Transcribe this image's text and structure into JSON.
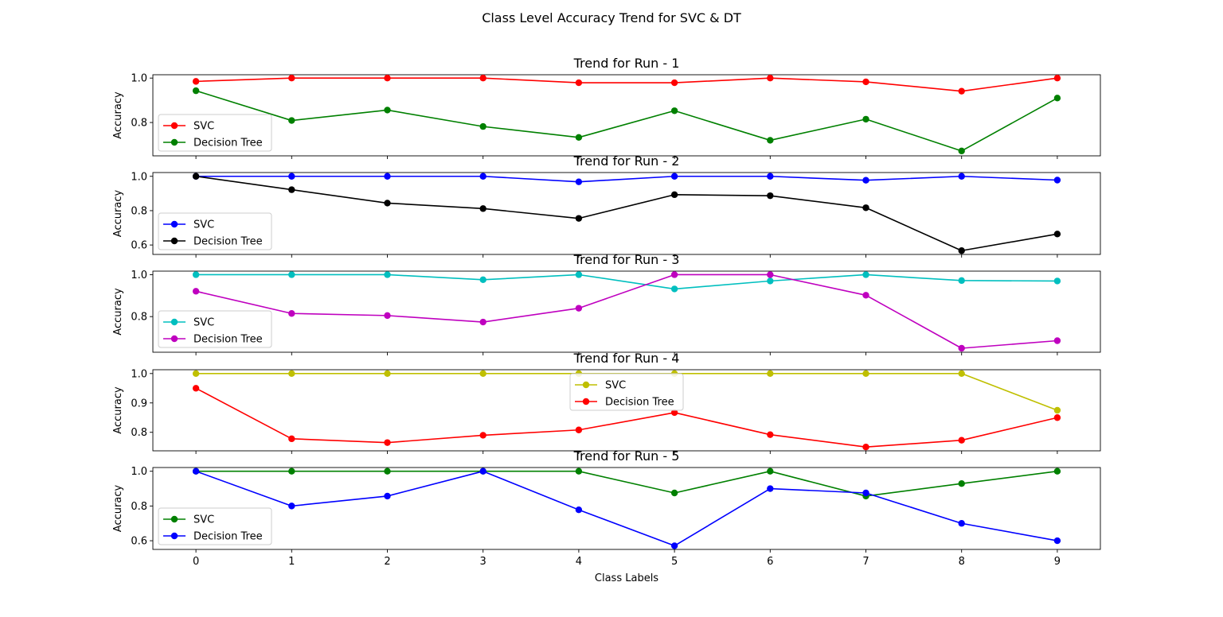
{
  "figure": {
    "suptitle": "Class Level Accuracy Trend for SVC & DT",
    "xlabel": "Class Labels"
  },
  "chart_data": [
    {
      "type": "line",
      "title": "Trend for Run - 1",
      "xlabel": "",
      "ylabel": "Accuracy",
      "x": [
        0,
        1,
        2,
        3,
        4,
        5,
        6,
        7,
        8,
        9
      ],
      "xlim": [
        -0.45,
        9.45
      ],
      "ylim": [
        0.65,
        1.015
      ],
      "yticks": [
        0.8,
        1.0
      ],
      "legend": "lower-left",
      "grid": false,
      "series": [
        {
          "name": "SVC",
          "color": "#ff0000",
          "values": [
            0.985,
            1.0,
            1.0,
            1.0,
            0.979,
            0.979,
            1.0,
            0.983,
            0.941,
            1.0
          ]
        },
        {
          "name": "Decision Tree",
          "color": "#008000",
          "values": [
            0.943,
            0.809,
            0.856,
            0.782,
            0.733,
            0.853,
            0.72,
            0.815,
            0.672,
            0.91
          ]
        }
      ]
    },
    {
      "type": "line",
      "title": "Trend for Run - 2",
      "xlabel": "",
      "ylabel": "Accuracy",
      "x": [
        0,
        1,
        2,
        3,
        4,
        5,
        6,
        7,
        8,
        9
      ],
      "xlim": [
        -0.45,
        9.45
      ],
      "ylim": [
        0.545,
        1.022
      ],
      "yticks": [
        0.6,
        0.8,
        1.0
      ],
      "legend": "lower-left",
      "grid": false,
      "series": [
        {
          "name": "SVC",
          "color": "#0000ff",
          "values": [
            1.0,
            1.0,
            1.0,
            1.0,
            0.968,
            1.0,
            1.0,
            0.977,
            1.0,
            0.978
          ]
        },
        {
          "name": "Decision Tree",
          "color": "#000000",
          "values": [
            1.0,
            0.922,
            0.844,
            0.812,
            0.755,
            0.893,
            0.887,
            0.817,
            0.567,
            0.664
          ]
        }
      ]
    },
    {
      "type": "line",
      "title": "Trend for Run - 3",
      "xlabel": "",
      "ylabel": "Accuracy",
      "x": [
        0,
        1,
        2,
        3,
        4,
        5,
        6,
        7,
        8,
        9
      ],
      "xlim": [
        -0.45,
        9.45
      ],
      "ylim": [
        0.63,
        1.017
      ],
      "yticks": [
        0.8,
        1.0
      ],
      "legend": "lower-left",
      "grid": false,
      "series": [
        {
          "name": "SVC",
          "color": "#00bfbf",
          "values": [
            1.0,
            1.0,
            1.0,
            0.976,
            1.0,
            0.932,
            0.97,
            1.0,
            0.972,
            0.97
          ]
        },
        {
          "name": "Decision Tree",
          "color": "#bf00bf",
          "values": [
            0.921,
            0.815,
            0.805,
            0.774,
            0.84,
            1.0,
            1.0,
            0.902,
            0.649,
            0.685
          ]
        }
      ]
    },
    {
      "type": "line",
      "title": "Trend for Run - 4",
      "xlabel": "",
      "ylabel": "Accuracy",
      "x": [
        0,
        1,
        2,
        3,
        4,
        5,
        6,
        7,
        8,
        9
      ],
      "xlim": [
        -0.45,
        9.45
      ],
      "ylim": [
        0.737,
        1.013
      ],
      "yticks": [
        0.8,
        0.9,
        1.0
      ],
      "legend": "upper-center",
      "grid": false,
      "series": [
        {
          "name": "SVC",
          "color": "#bfbf00",
          "values": [
            1.0,
            1.0,
            1.0,
            1.0,
            1.0,
            1.0,
            1.0,
            1.0,
            1.0,
            0.875
          ]
        },
        {
          "name": "Decision Tree",
          "color": "#ff0000",
          "values": [
            0.95,
            0.778,
            0.765,
            0.79,
            0.808,
            0.867,
            0.792,
            0.75,
            0.773,
            0.85
          ]
        }
      ]
    },
    {
      "type": "line",
      "title": "Trend for Run - 5",
      "xlabel": "Class Labels",
      "ylabel": "Accuracy",
      "x": [
        0,
        1,
        2,
        3,
        4,
        5,
        6,
        7,
        8,
        9
      ],
      "xlim": [
        -0.45,
        9.45
      ],
      "ylim": [
        0.55,
        1.0215
      ],
      "yticks": [
        0.6,
        0.8,
        1.0
      ],
      "xticks": [
        "0",
        "1",
        "2",
        "3",
        "4",
        "5",
        "6",
        "7",
        "8",
        "9"
      ],
      "legend": "lower-left",
      "grid": false,
      "series": [
        {
          "name": "SVC",
          "color": "#008000",
          "values": [
            1.0,
            1.0,
            1.0,
            1.0,
            1.0,
            0.875,
            1.0,
            0.857,
            0.929,
            1.0
          ]
        },
        {
          "name": "Decision Tree",
          "color": "#0000ff",
          "values": [
            1.0,
            0.8,
            0.857,
            1.0,
            0.778,
            0.571,
            0.9,
            0.875,
            0.7,
            0.6
          ]
        }
      ]
    }
  ]
}
